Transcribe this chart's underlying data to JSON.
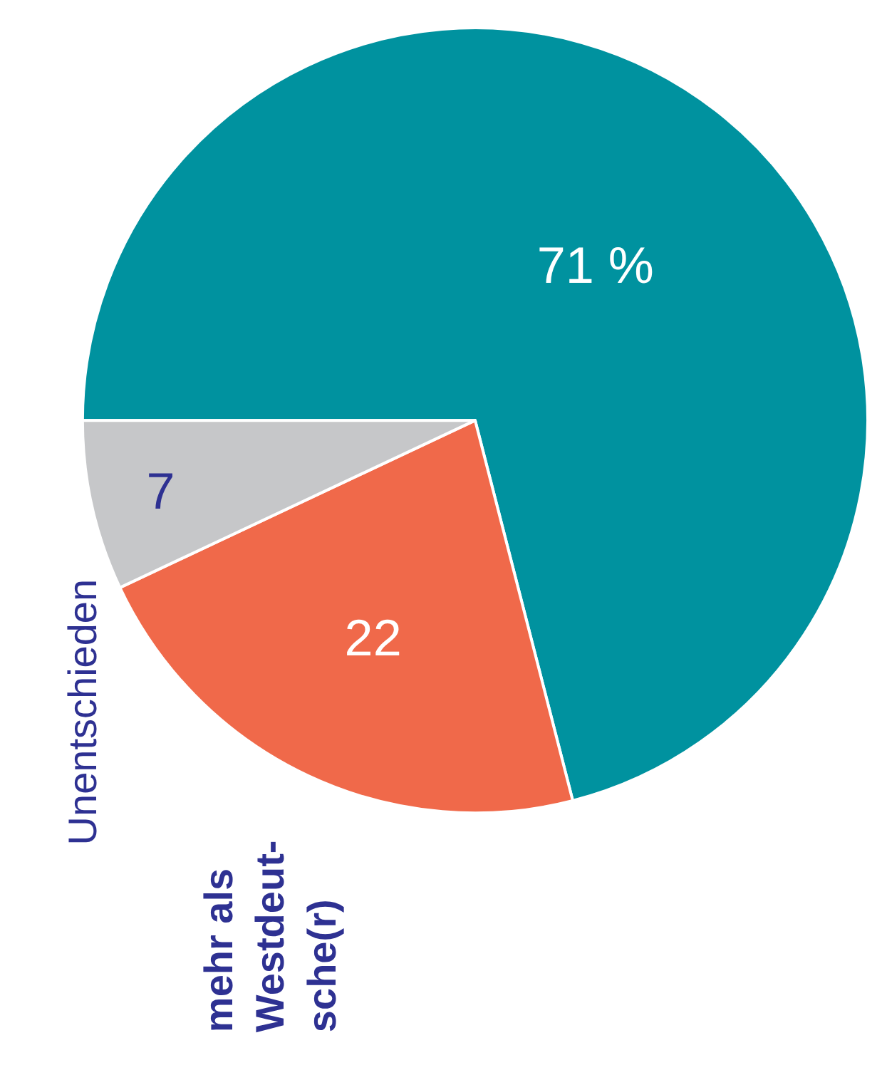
{
  "chart_data": {
    "type": "pie",
    "categories": [
      null,
      "mehr als\nWestdeut-\nsche(r)",
      "Unentschieden"
    ],
    "values": [
      71,
      22,
      7
    ],
    "colors": [
      "#00929f",
      "#f0694a",
      "#c6c7c9"
    ],
    "value_labels": [
      "71 %",
      "22",
      "7"
    ],
    "legend": false
  }
}
